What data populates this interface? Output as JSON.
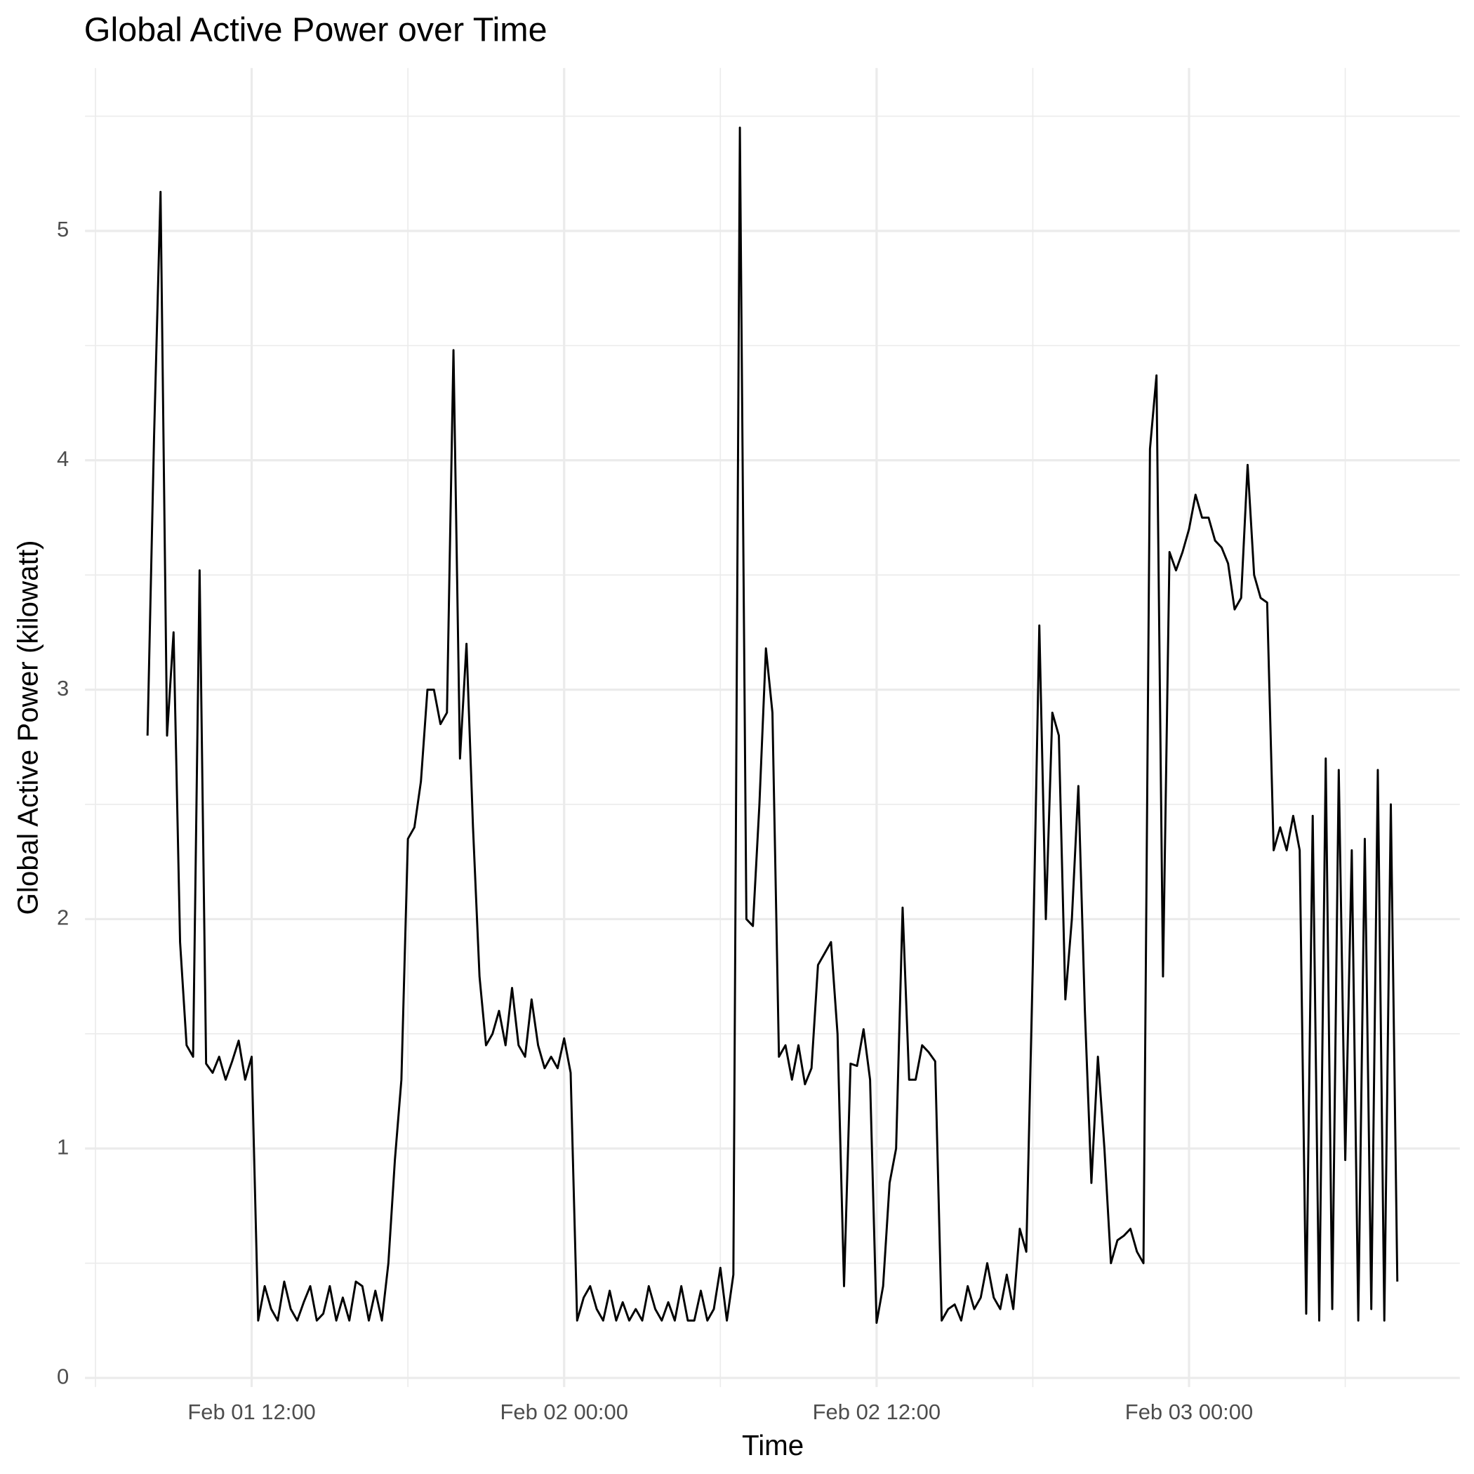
{
  "chart_data": {
    "type": "line",
    "title": "Global Active Power over Time",
    "x_label": "Time",
    "y_label": "Global Active Power (kilowatt)",
    "x": [
      "Feb 01 08:00",
      "Feb 01 08:15",
      "Feb 01 08:30",
      "Feb 01 08:45",
      "Feb 01 09:00",
      "Feb 01 09:15",
      "Feb 01 09:30",
      "Feb 01 09:45",
      "Feb 01 10:00",
      "Feb 01 10:15",
      "Feb 01 10:30",
      "Feb 01 10:45",
      "Feb 01 11:00",
      "Feb 01 11:15",
      "Feb 01 11:30",
      "Feb 01 11:45",
      "Feb 01 12:00",
      "Feb 01 12:15",
      "Feb 01 12:30",
      "Feb 01 12:45",
      "Feb 01 13:00",
      "Feb 01 13:15",
      "Feb 01 13:30",
      "Feb 01 13:45",
      "Feb 01 14:00",
      "Feb 01 14:15",
      "Feb 01 14:30",
      "Feb 01 14:45",
      "Feb 01 15:00",
      "Feb 01 15:15",
      "Feb 01 15:30",
      "Feb 01 15:45",
      "Feb 01 16:00",
      "Feb 01 16:15",
      "Feb 01 16:30",
      "Feb 01 16:45",
      "Feb 01 17:00",
      "Feb 01 17:15",
      "Feb 01 17:30",
      "Feb 01 17:45",
      "Feb 01 18:00",
      "Feb 01 18:15",
      "Feb 01 18:30",
      "Feb 01 18:45",
      "Feb 01 19:00",
      "Feb 01 19:15",
      "Feb 01 19:30",
      "Feb 01 19:45",
      "Feb 01 20:00",
      "Feb 01 20:15",
      "Feb 01 20:30",
      "Feb 01 20:45",
      "Feb 01 21:00",
      "Feb 01 21:15",
      "Feb 01 21:30",
      "Feb 01 21:45",
      "Feb 01 22:00",
      "Feb 01 22:15",
      "Feb 01 22:30",
      "Feb 01 22:45",
      "Feb 01 23:00",
      "Feb 01 23:15",
      "Feb 01 23:30",
      "Feb 01 23:45",
      "Feb 02 00:00",
      "Feb 02 00:15",
      "Feb 02 00:30",
      "Feb 02 00:45",
      "Feb 02 01:00",
      "Feb 02 01:15",
      "Feb 02 01:30",
      "Feb 02 01:45",
      "Feb 02 02:00",
      "Feb 02 02:15",
      "Feb 02 02:30",
      "Feb 02 02:45",
      "Feb 02 03:00",
      "Feb 02 03:15",
      "Feb 02 03:30",
      "Feb 02 03:45",
      "Feb 02 04:00",
      "Feb 02 04:15",
      "Feb 02 04:30",
      "Feb 02 04:45",
      "Feb 02 05:00",
      "Feb 02 05:15",
      "Feb 02 05:30",
      "Feb 02 05:45",
      "Feb 02 06:00",
      "Feb 02 06:15",
      "Feb 02 06:30",
      "Feb 02 06:45",
      "Feb 02 07:00",
      "Feb 02 07:15",
      "Feb 02 07:30",
      "Feb 02 07:45",
      "Feb 02 08:00",
      "Feb 02 08:15",
      "Feb 02 08:30",
      "Feb 02 08:45",
      "Feb 02 09:00",
      "Feb 02 09:15",
      "Feb 02 09:30",
      "Feb 02 09:45",
      "Feb 02 10:00",
      "Feb 02 10:15",
      "Feb 02 10:30",
      "Feb 02 10:45",
      "Feb 02 11:00",
      "Feb 02 11:15",
      "Feb 02 11:30",
      "Feb 02 11:45",
      "Feb 02 12:00",
      "Feb 02 12:15",
      "Feb 02 12:30",
      "Feb 02 12:45",
      "Feb 02 13:00",
      "Feb 02 13:15",
      "Feb 02 13:30",
      "Feb 02 13:45",
      "Feb 02 14:00",
      "Feb 02 14:15",
      "Feb 02 14:30",
      "Feb 02 14:45",
      "Feb 02 15:00",
      "Feb 02 15:15",
      "Feb 02 15:30",
      "Feb 02 15:45",
      "Feb 02 16:00",
      "Feb 02 16:15",
      "Feb 02 16:30",
      "Feb 02 16:45",
      "Feb 02 17:00",
      "Feb 02 17:15",
      "Feb 02 17:30",
      "Feb 02 17:45",
      "Feb 02 18:00",
      "Feb 02 18:15",
      "Feb 02 18:30",
      "Feb 02 18:45",
      "Feb 02 19:00",
      "Feb 02 19:15",
      "Feb 02 19:30",
      "Feb 02 19:45",
      "Feb 02 20:00",
      "Feb 02 20:15",
      "Feb 02 20:30",
      "Feb 02 20:45",
      "Feb 02 21:00",
      "Feb 02 21:15",
      "Feb 02 21:30",
      "Feb 02 21:45",
      "Feb 02 22:00",
      "Feb 02 22:15",
      "Feb 02 22:30",
      "Feb 02 22:45",
      "Feb 02 23:00",
      "Feb 02 23:15",
      "Feb 02 23:30",
      "Feb 02 23:45",
      "Feb 03 00:00",
      "Feb 03 00:15",
      "Feb 03 00:30",
      "Feb 03 00:45",
      "Feb 03 01:00",
      "Feb 03 01:15",
      "Feb 03 01:30",
      "Feb 03 01:45",
      "Feb 03 02:00",
      "Feb 03 02:15",
      "Feb 03 02:30",
      "Feb 03 02:45",
      "Feb 03 03:00",
      "Feb 03 03:15",
      "Feb 03 03:30",
      "Feb 03 03:45",
      "Feb 03 04:00",
      "Feb 03 04:15",
      "Feb 03 04:30",
      "Feb 03 04:45",
      "Feb 03 05:00",
      "Feb 03 05:15",
      "Feb 03 05:30",
      "Feb 03 05:45",
      "Feb 03 06:00",
      "Feb 03 06:15",
      "Feb 03 06:30",
      "Feb 03 06:45",
      "Feb 03 07:00",
      "Feb 03 07:15",
      "Feb 03 07:30",
      "Feb 03 07:45",
      "Feb 03 08:00"
    ],
    "series": [
      {
        "color": "#000000",
        "values": [
          2.8,
          4.1,
          5.17,
          2.8,
          3.25,
          1.9,
          1.45,
          1.4,
          3.52,
          1.37,
          1.33,
          1.4,
          1.3,
          1.38,
          1.47,
          1.3,
          1.4,
          0.25,
          0.4,
          0.3,
          0.25,
          0.42,
          0.3,
          0.25,
          0.33,
          0.4,
          0.25,
          0.28,
          0.4,
          0.25,
          0.35,
          0.25,
          0.42,
          0.4,
          0.25,
          0.38,
          0.25,
          0.5,
          0.95,
          1.3,
          2.35,
          2.4,
          2.6,
          3.0,
          3.0,
          2.85,
          2.9,
          4.48,
          2.7,
          3.2,
          2.4,
          1.75,
          1.45,
          1.5,
          1.6,
          1.45,
          1.7,
          1.45,
          1.4,
          1.65,
          1.45,
          1.35,
          1.4,
          1.35,
          1.48,
          1.33,
          0.25,
          0.35,
          0.4,
          0.3,
          0.25,
          0.38,
          0.25,
          0.33,
          0.25,
          0.3,
          0.25,
          0.4,
          0.3,
          0.25,
          0.33,
          0.25,
          0.4,
          0.25,
          0.25,
          0.38,
          0.25,
          0.3,
          0.48,
          0.25,
          0.45,
          5.45,
          2.0,
          1.97,
          2.5,
          3.18,
          2.9,
          1.4,
          1.45,
          1.3,
          1.45,
          1.28,
          1.35,
          1.8,
          1.85,
          1.9,
          1.5,
          0.4,
          1.37,
          1.36,
          1.52,
          1.3,
          0.24,
          0.4,
          0.85,
          1.0,
          2.05,
          1.3,
          1.3,
          1.45,
          1.42,
          1.38,
          0.25,
          0.3,
          0.32,
          0.25,
          0.4,
          0.3,
          0.35,
          0.5,
          0.35,
          0.3,
          0.45,
          0.3,
          0.65,
          0.55,
          1.8,
          3.28,
          2.0,
          2.9,
          2.8,
          1.65,
          2.0,
          2.58,
          1.6,
          0.85,
          1.4,
          1.0,
          0.5,
          0.6,
          0.62,
          0.65,
          0.55,
          0.5,
          4.05,
          4.37,
          1.75,
          3.6,
          3.52,
          3.6,
          3.7,
          3.85,
          3.75,
          3.75,
          3.65,
          3.62,
          3.55,
          3.35,
          3.4,
          3.98,
          3.5,
          3.4,
          3.38,
          2.3,
          2.4,
          2.3,
          2.45,
          2.3,
          0.28,
          2.45,
          0.25,
          2.7,
          0.3,
          2.65,
          0.95,
          2.3,
          0.25,
          2.35,
          0.3,
          2.65,
          0.25,
          2.5,
          0.42
        ]
      }
    ],
    "xlim": [
      "Feb 01 05:36",
      "Feb 03 10:24"
    ],
    "xticks": [
      "Feb 01 12:00",
      "Feb 02 00:00",
      "Feb 02 12:00",
      "Feb 03 00:00"
    ],
    "x_minor_ticks": [
      "Feb 01 06:00",
      "Feb 01 18:00",
      "Feb 02 06:00",
      "Feb 02 18:00",
      "Feb 03 06:00"
    ],
    "ylim": [
      -0.04,
      5.71
    ],
    "yticks": [
      0,
      1,
      2,
      3,
      4,
      5
    ],
    "y_minor_ticks": [
      0.5,
      1.5,
      2.5,
      3.5,
      4.5,
      5.5
    ],
    "grid": true
  }
}
